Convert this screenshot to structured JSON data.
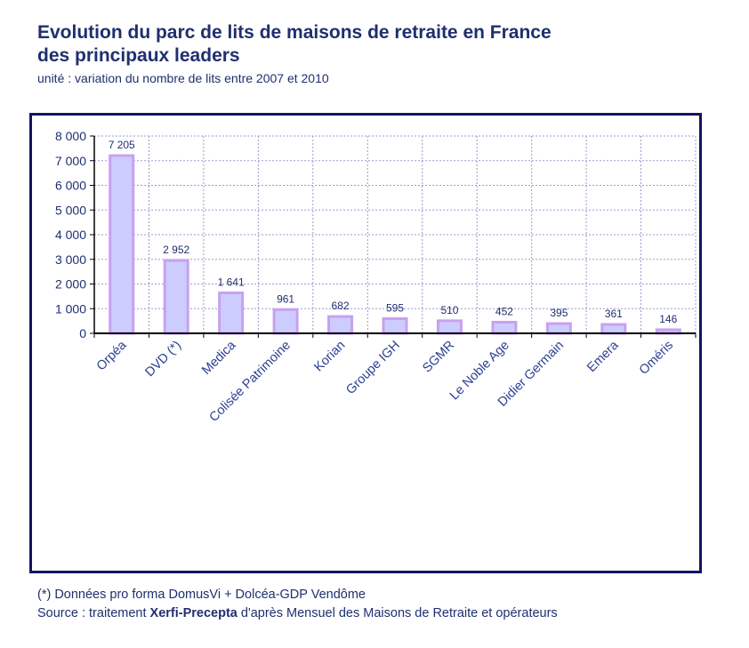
{
  "header": {
    "title_line1": "Evolution du parc de lits de maisons de retraite en France",
    "title_line2": "des principaux leaders",
    "subtitle": "unité : variation du nombre de lits entre 2007 et 2010"
  },
  "footer": {
    "note": "(*) Données pro forma DomusVi + Dolcéa-GDP Vendôme",
    "source_prefix": "Source : traitement ",
    "source_brand": "Xerfi-Precepta",
    "source_suffix": " d'après Mensuel des Maisons de Retraite et opérateurs"
  },
  "chart_data": {
    "type": "bar",
    "categories": [
      "Orpéa",
      "DVD (*)",
      "Medica",
      "Colisée Patrimoine",
      "Korian",
      "Groupe IGH",
      "SGMR",
      "Le Noble Age",
      "Didier Germain",
      "Emera",
      "Oméris"
    ],
    "values": [
      7205,
      2952,
      1641,
      961,
      682,
      595,
      510,
      452,
      395,
      361,
      146
    ],
    "value_labels": [
      "7 205",
      "2 952",
      "1 641",
      "961",
      "682",
      "595",
      "510",
      "452",
      "395",
      "361",
      "146"
    ],
    "y_ticks": [
      0,
      1000,
      2000,
      3000,
      4000,
      5000,
      6000,
      7000,
      8000
    ],
    "y_tick_labels": [
      "0",
      "1 000",
      "2 000",
      "3 000",
      "4 000",
      "5 000",
      "6 000",
      "7 000",
      "8 000"
    ],
    "ylim": [
      0,
      8000
    ],
    "grid": true,
    "legend": "none",
    "colors": {
      "bar_fill": "#ccccff",
      "bar_stroke": "#c9a0f0",
      "grid": "#9a9ad0",
      "axis": "#000000",
      "text": "#1f2f6f",
      "frame": "#14145f"
    }
  }
}
